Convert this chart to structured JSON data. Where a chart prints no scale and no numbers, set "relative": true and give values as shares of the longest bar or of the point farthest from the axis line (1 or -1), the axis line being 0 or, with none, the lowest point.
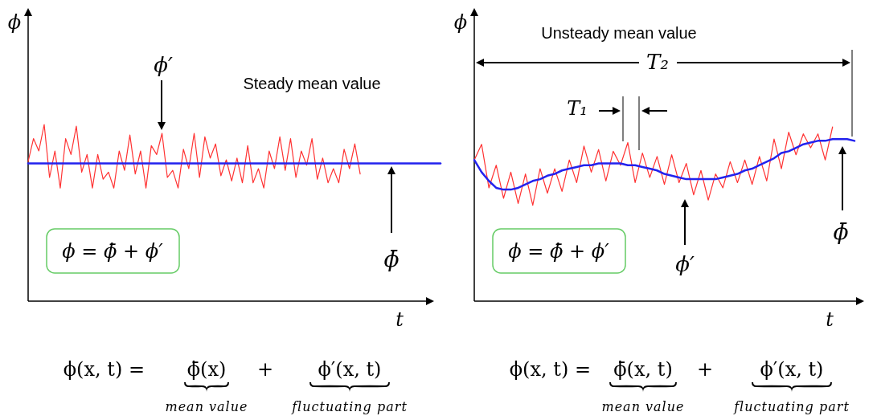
{
  "chart_data": [
    {
      "type": "line",
      "title": "Steady mean value",
      "xlabel": "t",
      "ylabel": "ϕ",
      "relative": true,
      "categories": [
        null,
        null,
        null,
        null,
        null,
        null,
        null,
        null,
        null,
        null,
        null,
        null,
        null,
        null,
        null,
        null,
        null,
        null,
        null,
        null,
        null,
        null,
        null,
        null,
        null,
        null,
        null,
        null,
        null,
        null,
        null,
        null,
        null,
        null,
        null,
        null,
        null,
        null,
        null,
        null,
        null,
        null,
        null,
        null,
        null,
        null,
        null,
        null,
        null,
        null,
        null,
        null,
        null,
        null,
        null,
        null,
        null,
        null,
        null,
        null,
        null,
        null,
        null,
        null,
        null,
        null,
        null,
        null,
        null,
        null,
        null,
        null,
        null,
        null,
        null,
        null,
        null,
        null
      ],
      "series": [
        {
          "color": "#ff3333",
          "values": [
            0.79,
            0.92,
            0.85,
            1,
            0.7,
            0.85,
            0.64,
            0.92,
            0.83,
            0.99,
            0.73,
            0.83,
            0.64,
            0.83,
            0.69,
            0.73,
            0.64,
            0.85,
            0.74,
            0.94,
            0.72,
            0.85,
            0.64,
            0.88,
            0.83,
            0.95,
            0.7,
            0.74,
            0.64,
            0.86,
            0.75,
            0.95,
            0.7,
            0.93,
            0.81,
            0.89,
            0.71,
            0.8,
            0.68,
            0.81,
            0.67,
            0.88,
            0.67,
            0.75,
            0.64,
            0.85,
            0.75,
            0.93,
            0.74,
            0.92,
            0.7,
            0.85,
            0.77,
            0.92,
            0.69,
            0.81,
            0.67,
            0.75,
            0.67,
            0.86,
            0.75,
            0.89,
            0.72,
            null,
            null,
            null,
            null,
            null,
            null,
            null,
            null,
            null,
            null,
            null,
            null,
            null,
            null,
            null
          ]
        },
        {
          "color": "#2222ee",
          "values": [
            0.78,
            0.78,
            0.78,
            0.78,
            0.78,
            0.78,
            0.78,
            0.78,
            0.78,
            0.78,
            0.78,
            0.78,
            0.78,
            0.78,
            0.78,
            0.78,
            0.78,
            0.78,
            0.78,
            0.78,
            0.78,
            0.78,
            0.78,
            0.78,
            0.78,
            0.78,
            0.78,
            0.78,
            0.78,
            0.78,
            0.78,
            0.78,
            0.78,
            0.78,
            0.78,
            0.78,
            0.78,
            0.78,
            0.78,
            0.78,
            0.78,
            0.78,
            0.78,
            0.78,
            0.78,
            0.78,
            0.78,
            0.78,
            0.78,
            0.78,
            0.78,
            0.78,
            0.78,
            0.78,
            0.78,
            0.78,
            0.78,
            0.78,
            0.78,
            0.78,
            0.78,
            0.78,
            0.78,
            0.78,
            0.78,
            0.78,
            0.78,
            0.78,
            0.78,
            0.78,
            0.78,
            0.78,
            0.78,
            0.78,
            0.78,
            0.78,
            0.78,
            0.78
          ]
        }
      ],
      "annotations": [
        "ϕ′",
        "ϕ̄",
        "ϕ = ϕ̄ + ϕ′",
        "ϕ(x, t) =",
        "ϕ̄(x)",
        "+",
        "ϕ′(x, t)",
        "mean value",
        "fluctuating part"
      ]
    },
    {
      "type": "line",
      "title": "Unsteady mean value",
      "xlabel": "t",
      "ylabel": "ϕ",
      "relative": true,
      "categories": [
        null,
        null,
        null,
        null,
        null,
        null,
        null,
        null,
        null,
        null,
        null,
        null,
        null,
        null,
        null,
        null,
        null,
        null,
        null,
        null,
        null,
        null,
        null,
        null,
        null,
        null,
        null,
        null,
        null,
        null,
        null,
        null,
        null,
        null,
        null,
        null,
        null,
        null,
        null,
        null,
        null,
        null,
        null,
        null,
        null,
        null,
        null,
        null,
        null,
        null,
        null,
        null,
        null
      ],
      "series": [
        {
          "color": "#ff3333",
          "values": [
            0.81,
            0.9,
            0.65,
            0.78,
            0.59,
            0.74,
            0.56,
            0.73,
            0.55,
            0.76,
            0.62,
            0.76,
            0.63,
            0.81,
            0.68,
            0.89,
            0.74,
            0.87,
            0.69,
            0.86,
            0.78,
            0.91,
            0.68,
            0.85,
            0.71,
            0.83,
            0.67,
            0.84,
            0.68,
            0.79,
            0.61,
            0.75,
            0.58,
            0.73,
            0.65,
            0.8,
            0.68,
            0.81,
            0.67,
            0.83,
            0.69,
            0.93,
            0.76,
            0.97,
            0.84,
            0.96,
            0.88,
            0.96,
            0.81,
            1,
            null,
            null,
            null
          ]
        },
        {
          "color": "#2222ee",
          "values": [
            0.81,
            0.74,
            0.69,
            0.65,
            0.64,
            0.64,
            0.65,
            0.67,
            0.69,
            0.7,
            0.72,
            0.73,
            0.75,
            0.76,
            0.77,
            0.78,
            0.78,
            0.79,
            0.79,
            0.79,
            0.79,
            0.78,
            0.78,
            0.77,
            0.76,
            0.75,
            0.73,
            0.72,
            0.71,
            0.7,
            0.7,
            0.7,
            0.7,
            0.7,
            0.71,
            0.72,
            0.73,
            0.75,
            0.76,
            0.78,
            0.8,
            0.82,
            0.85,
            0.86,
            0.88,
            0.9,
            0.91,
            0.92,
            0.92,
            0.93,
            0.93,
            0.93,
            0.92
          ]
        }
      ],
      "annotations": [
        "T₂",
        "T₁",
        "ϕ′",
        "ϕ̄",
        "ϕ = ϕ̄ + ϕ′",
        "ϕ(x, t) =",
        "ϕ̄(x, t)",
        "+",
        "ϕ′(x, t)",
        "mean value",
        "fluctuating part"
      ]
    }
  ]
}
